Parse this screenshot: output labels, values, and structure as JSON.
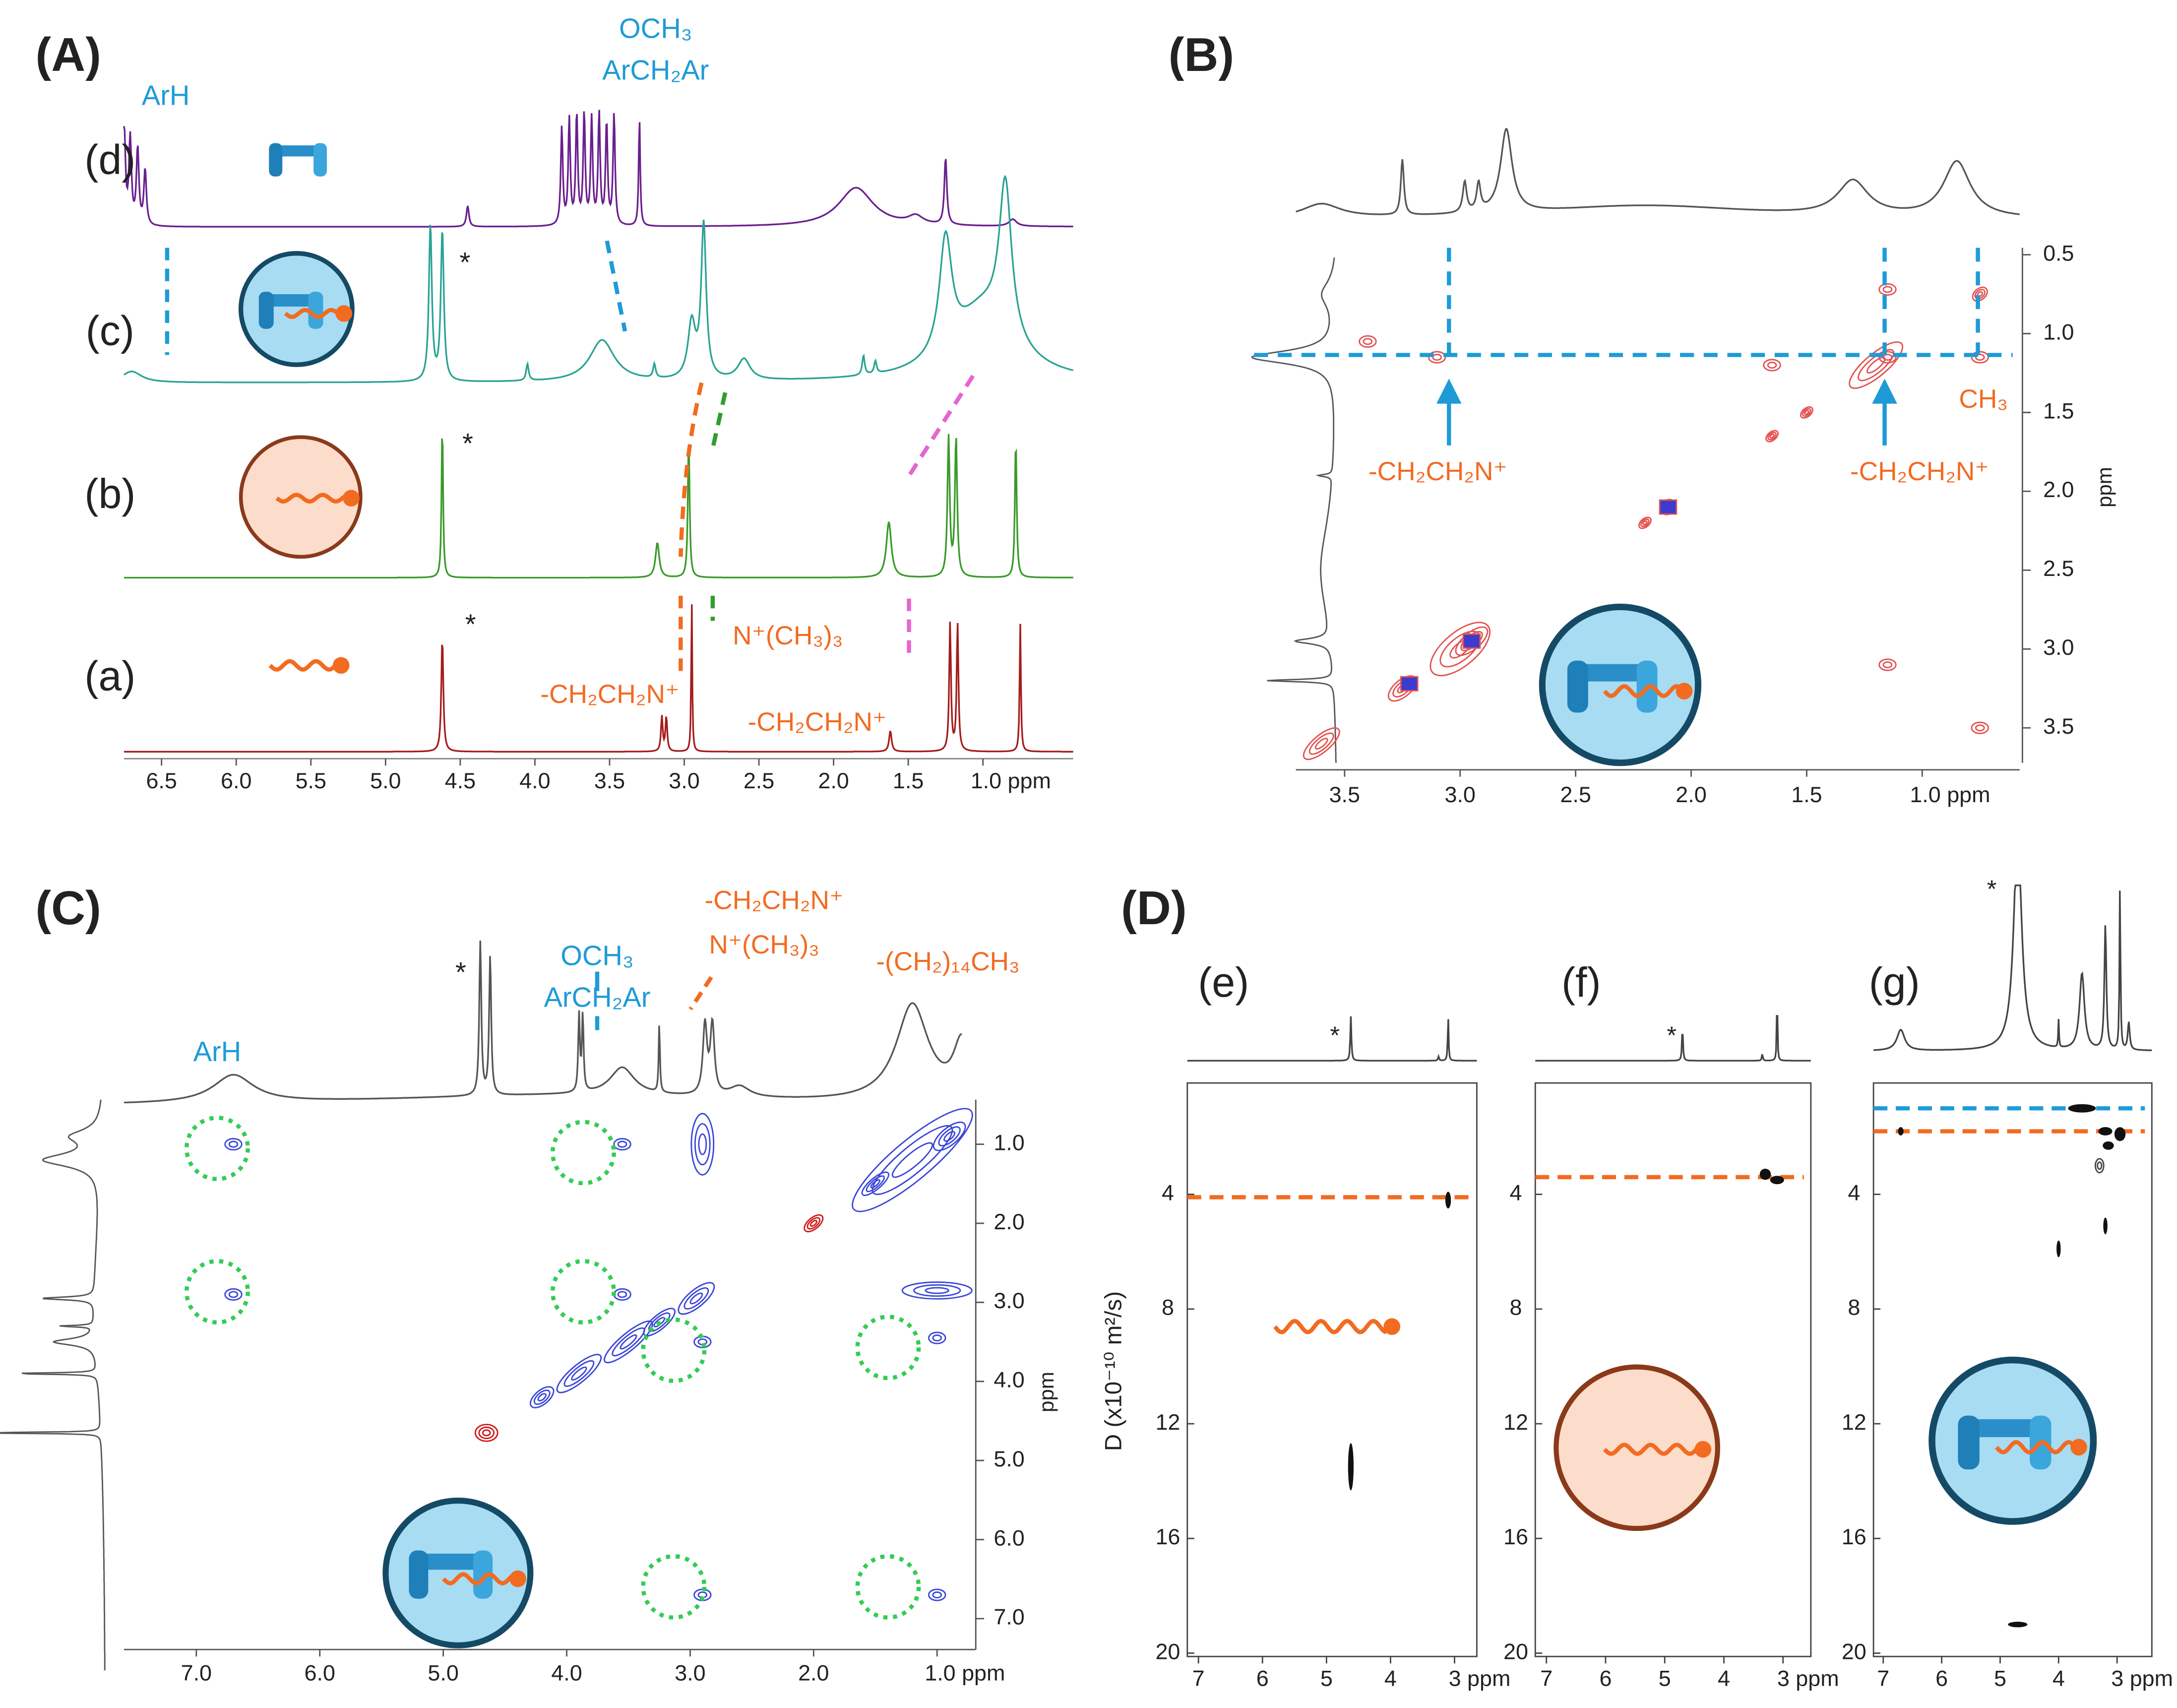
{
  "A": {
    "label": "(A)",
    "traces": [
      "(d)",
      "(c)",
      "(b)",
      "(a)"
    ],
    "labels": {
      "arh": "ArH",
      "och3": "OCH₃",
      "arch2ar": "ArCH₂Ar",
      "nme3": "N⁺(CH₃)₃",
      "ch2ch2n_left": "-CH₂CH₂N⁺",
      "ch2ch2n_right": "-CH₂CH₂N⁺"
    },
    "stars": [
      "*",
      "*",
      "*"
    ],
    "xticks": [
      "6.5",
      "6.0",
      "5.5",
      "5.0",
      "4.5",
      "4.0",
      "3.5",
      "3.0",
      "2.5",
      "2.0",
      "1.5",
      "1.0 ppm"
    ]
  },
  "B": {
    "label": "(B)",
    "labels": {
      "left": "-CH₂CH₂N⁺",
      "right": "-CH₂CH₂N⁺",
      "ch3": "CH₃"
    },
    "xticks": [
      "3.5",
      "3.0",
      "2.5",
      "2.0",
      "1.5",
      "1.0 ppm"
    ],
    "yticks": [
      "0.5",
      "1.0",
      "1.5",
      "2.0",
      "2.5",
      "3.0",
      "3.5"
    ],
    "yunit": "ppm"
  },
  "C": {
    "label": "(C)",
    "labels": {
      "arh": "ArH",
      "och3": "OCH₃",
      "arch2ar": "ArCH₂Ar",
      "ch2ch2n": "-CH₂CH₂N⁺",
      "nme3": "N⁺(CH₃)₃",
      "chain": "-(CH₂)₁₄CH₃"
    },
    "star": "*",
    "xticks": [
      "7.0",
      "6.0",
      "5.0",
      "4.0",
      "3.0",
      "2.0",
      "1.0 ppm"
    ],
    "yticks": [
      "1.0",
      "2.0",
      "3.0",
      "4.0",
      "5.0",
      "6.0",
      "7.0"
    ],
    "yunit": "ppm"
  },
  "D": {
    "label": "(D)",
    "ylabel": "D (x10⁻¹⁰ m²/s)",
    "subpanels": [
      {
        "label": "(e)",
        "star": "*",
        "xticks": [
          "7",
          "6",
          "5",
          "4",
          "3 ppm"
        ],
        "yticks": [
          "4",
          "8",
          "12",
          "16",
          "20"
        ]
      },
      {
        "label": "(f)",
        "star": "*",
        "xticks": [
          "7",
          "6",
          "5",
          "4",
          "3 ppm"
        ],
        "yticks": [
          "4",
          "8",
          "12",
          "16",
          "20"
        ]
      },
      {
        "label": "(g)",
        "star": "*",
        "xticks": [
          "7",
          "6",
          "5",
          "4",
          "3 ppm"
        ],
        "yticks": [
          "4",
          "8",
          "12",
          "16",
          "20"
        ]
      }
    ]
  }
}
